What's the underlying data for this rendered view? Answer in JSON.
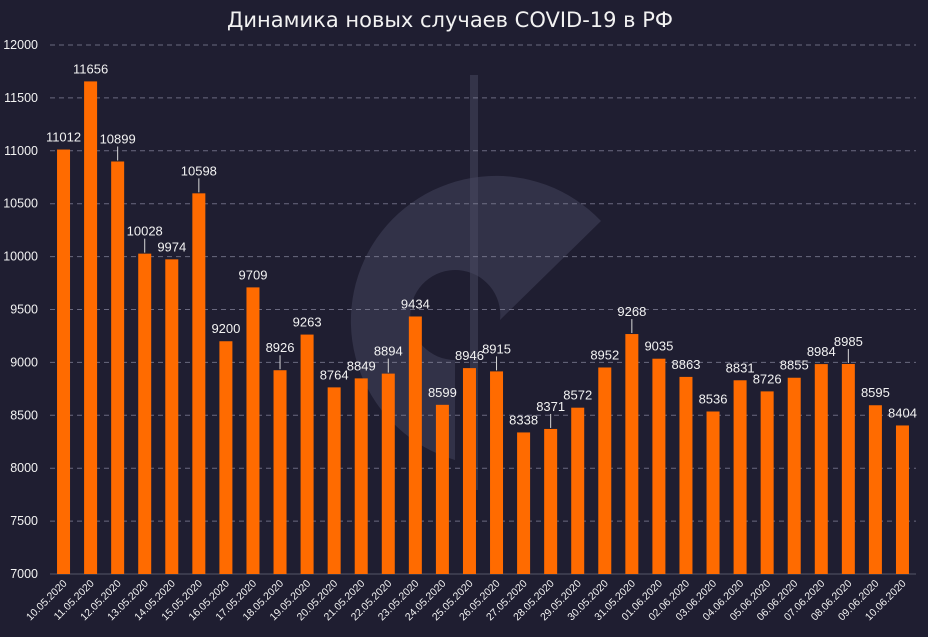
{
  "chart_data": {
    "type": "bar",
    "title": "Динамика новых случаев COVID-19 в РФ",
    "xlabel": "",
    "ylabel": "",
    "ylim": [
      7000,
      12000
    ],
    "yticks": [
      7000,
      7500,
      8000,
      8500,
      9000,
      9500,
      10000,
      10500,
      11000,
      11500,
      12000
    ],
    "grid": true,
    "legend": "none",
    "bar_color": "#ff6b00",
    "background_color": "#1f1e31",
    "grid_color": "#8a8aa0",
    "text_color": "#f2f2f2",
    "categories": [
      "10.05.2020",
      "11.05.2020",
      "12.05.2020",
      "13.05.2020",
      "14.05.2020",
      "15.05.2020",
      "16.05.2020",
      "17.05.2020",
      "18.05.2020",
      "19.05.2020",
      "20.05.2020",
      "21.05.2020",
      "22.05.2020",
      "23.05.2020",
      "24.05.2020",
      "25.05.2020",
      "26.05.2020",
      "27.05.2020",
      "28.05.2020",
      "29.05.2020",
      "30.05.2020",
      "31.05.2020",
      "01.06.2020",
      "02.06.2020",
      "03.06.2020",
      "04.06.2020",
      "05.06.2020",
      "06.06.2020",
      "07.06.2020",
      "08.06.2020",
      "09.06.2020",
      "10.06.2020"
    ],
    "values": [
      11012,
      11656,
      10899,
      10028,
      9974,
      10598,
      9200,
      9709,
      8926,
      9263,
      8764,
      8849,
      8894,
      9434,
      8599,
      8946,
      8915,
      8338,
      8371,
      8572,
      8952,
      9268,
      9035,
      8863,
      8536,
      8831,
      8726,
      8855,
      8984,
      8985,
      8595,
      8404
    ],
    "data_labels": [
      "11012",
      "11656",
      "10899",
      "10028",
      "9974",
      "10598",
      "9200",
      "9709",
      "8926",
      "9263",
      "8764",
      "8849",
      "8894",
      "9434",
      "8599",
      "8946",
      "8915",
      "8338",
      "8371",
      "8572",
      "8952",
      "9268",
      "9035",
      "8863",
      "8536",
      "8831",
      "8726",
      "8855",
      "8984",
      "8985",
      "8595",
      "8404"
    ],
    "labels_with_leader_line": [
      2,
      3,
      5,
      8,
      12,
      16,
      18,
      21,
      29
    ]
  }
}
